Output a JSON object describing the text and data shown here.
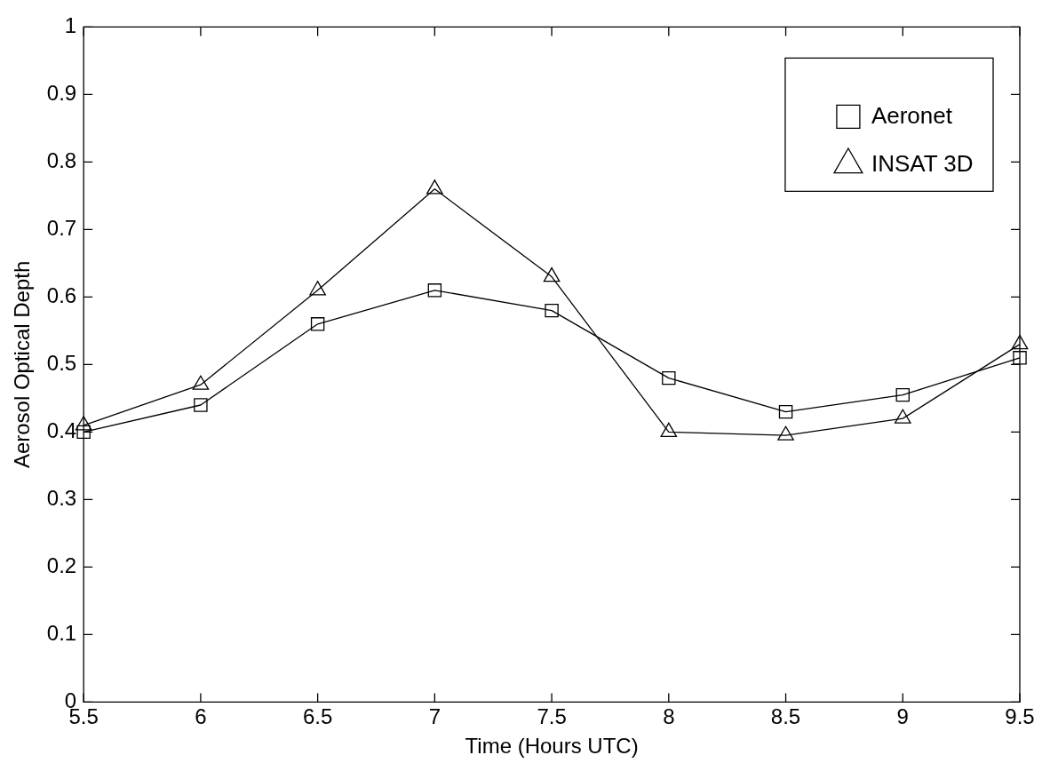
{
  "chart_data": {
    "type": "line",
    "xlabel": "Time (Hours UTC)",
    "ylabel": "Aerosol Optical Depth",
    "x": [
      5.5,
      6,
      6.5,
      7,
      7.5,
      8,
      8.5,
      9,
      9.5
    ],
    "series": [
      {
        "name": "Aeronet",
        "color": "#000000",
        "marker": "square",
        "values": [
          0.4,
          0.44,
          0.56,
          0.61,
          0.58,
          0.48,
          0.43,
          0.455,
          0.51
        ]
      },
      {
        "name": "INSAT 3D",
        "color": "#000000",
        "marker": "triangle",
        "values": [
          0.41,
          0.47,
          0.61,
          0.76,
          0.63,
          0.4,
          0.395,
          0.42,
          0.53
        ]
      }
    ],
    "xlim": [
      5.5,
      9.5
    ],
    "xticks": [
      5.5,
      6,
      6.5,
      7,
      7.5,
      8,
      8.5,
      9,
      9.5
    ],
    "ylim": [
      0,
      1
    ],
    "yticks": [
      0,
      0.1,
      0.2,
      0.3,
      0.4,
      0.5,
      0.6,
      0.7,
      0.8,
      0.9,
      1
    ],
    "grid": false,
    "legend": "top right",
    "line_style": "solid"
  }
}
